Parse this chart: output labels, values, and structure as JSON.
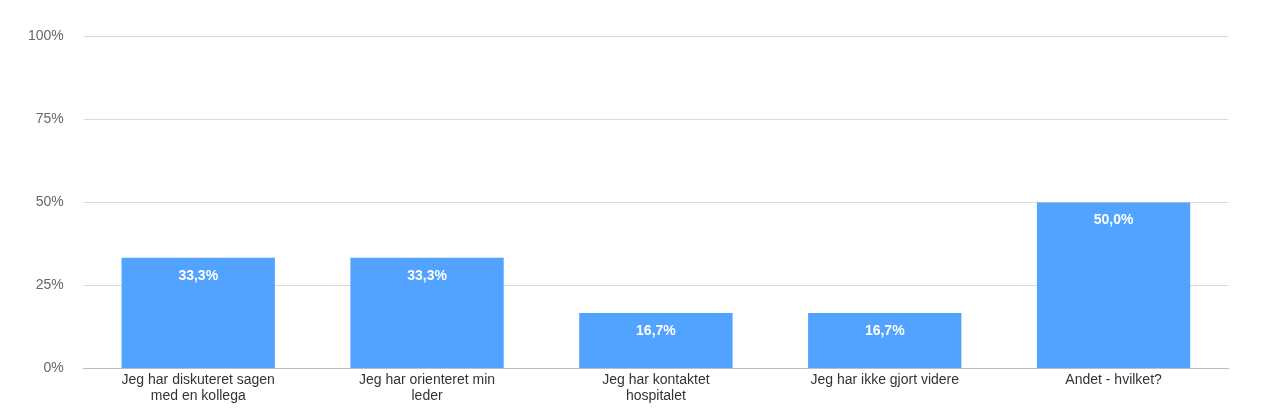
{
  "chart_data": {
    "type": "bar",
    "categories": [
      "Jeg har diskuteret sagen med en kollega",
      "Jeg har orienteret min leder",
      "Jeg har kontaktet hospitalet",
      "Jeg har ikke gjort videre",
      "Andet - hvilket?"
    ],
    "values": [
      33.3,
      33.3,
      16.7,
      16.7,
      50.0
    ],
    "value_labels": [
      "33,3%",
      "33,3%",
      "16,7%",
      "16,7%",
      "50,0%"
    ],
    "color": "#52a2ff",
    "ylim": [
      0,
      100
    ],
    "yticks": [
      {
        "value": 0,
        "label": "0%"
      },
      {
        "value": 25,
        "label": "25%"
      },
      {
        "value": 50,
        "label": "50%"
      },
      {
        "value": 75,
        "label": "75%"
      },
      {
        "value": 100,
        "label": "100%"
      }
    ],
    "grid": "y",
    "legend": false
  }
}
